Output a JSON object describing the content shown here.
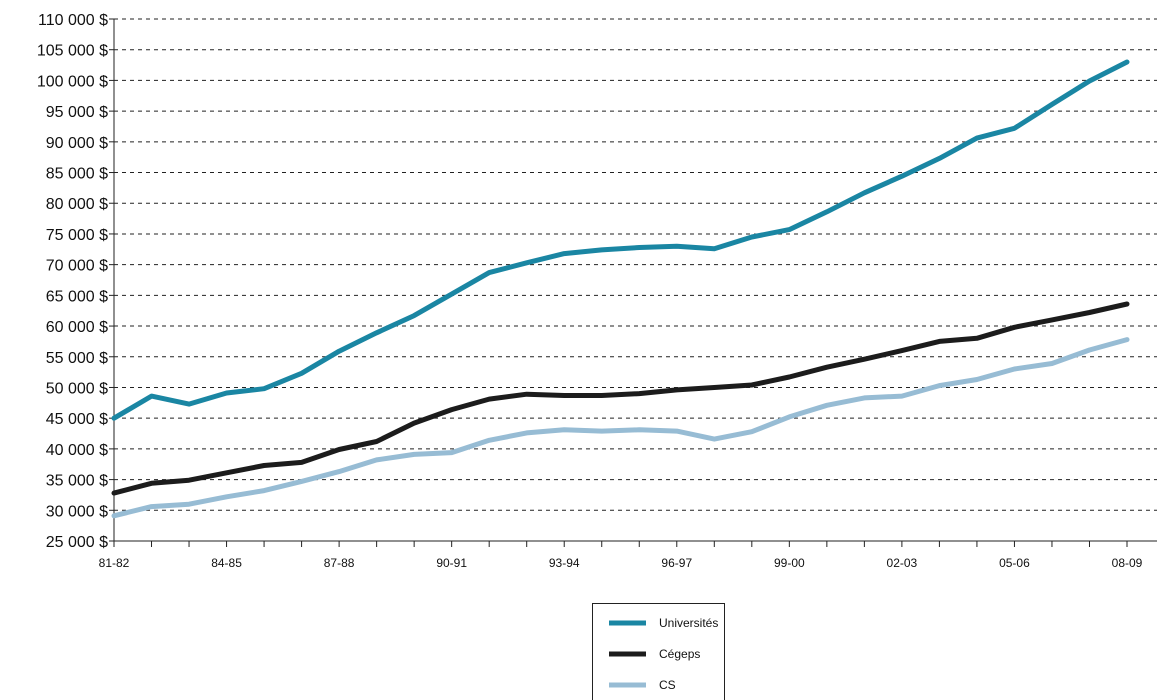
{
  "chart_data": {
    "type": "line",
    "title": "",
    "xlabel": "",
    "ylabel": "",
    "x": [
      "81-82",
      "82-83",
      "83-84",
      "84-85",
      "85-86",
      "86-87",
      "87-88",
      "88-89",
      "89-90",
      "90-91",
      "91-92",
      "92-93",
      "93-94",
      "94-95",
      "95-96",
      "96-97",
      "97-98",
      "98-99",
      "99-00",
      "00-01",
      "01-02",
      "02-03",
      "03-04",
      "04-05",
      "05-06",
      "06-07",
      "07-08",
      "08-09"
    ],
    "x_tick_labels": [
      "81-82",
      "",
      "",
      "84-85",
      "",
      "",
      "87-88",
      "",
      "",
      "90-91",
      "",
      "",
      "93-94",
      "",
      "",
      "96-97",
      "",
      "",
      "99-00",
      "",
      "",
      "02-03",
      "",
      "",
      "05-06",
      "",
      "",
      "08-09"
    ],
    "ylim": [
      25000,
      110000
    ],
    "y_ticks": [
      25000,
      30000,
      35000,
      40000,
      45000,
      50000,
      55000,
      60000,
      65000,
      70000,
      75000,
      80000,
      85000,
      90000,
      95000,
      100000,
      105000,
      110000
    ],
    "y_tick_labels": [
      "25 000 $",
      "30 000 $",
      "35 000 $",
      "40 000 $",
      "45 000 $",
      "50 000 $",
      "55 000 $",
      "60 000 $",
      "65 000 $",
      "70 000 $",
      "75 000 $",
      "80 000 $",
      "85 000 $",
      "90 000 $",
      "95 000 $",
      "100 000 $",
      "105 000 $",
      "110 000 $"
    ],
    "grid": "horizontal-dashed",
    "legend_position": "bottom-center",
    "series": [
      {
        "name": "Universités",
        "color": "#1a86a3",
        "values": [
          45000,
          48600,
          47300,
          49100,
          49800,
          52300,
          55900,
          58900,
          61700,
          65200,
          68700,
          70300,
          71800,
          72400,
          72800,
          73000,
          72600,
          74500,
          75700,
          78600,
          81700,
          84400,
          87300,
          90600,
          92200,
          96100,
          99900,
          103000
        ]
      },
      {
        "name": "Cégeps",
        "color": "#1c1c1c",
        "values": [
          32800,
          34400,
          34900,
          36100,
          37300,
          37800,
          39900,
          41200,
          44200,
          46400,
          48100,
          48900,
          48700,
          48700,
          49000,
          49600,
          50000,
          50400,
          51700,
          53300,
          54600,
          56000,
          57500,
          58000,
          59800,
          61000,
          62200,
          63600
        ]
      },
      {
        "name": "CS",
        "color": "#97bcd4",
        "values": [
          29100,
          30600,
          31000,
          32200,
          33200,
          34700,
          36300,
          38200,
          39100,
          39400,
          41400,
          42600,
          43100,
          42900,
          43100,
          42900,
          41600,
          42800,
          45200,
          47100,
          48300,
          48600,
          50300,
          51300,
          53000,
          53900,
          56100,
          57800
        ]
      }
    ]
  }
}
